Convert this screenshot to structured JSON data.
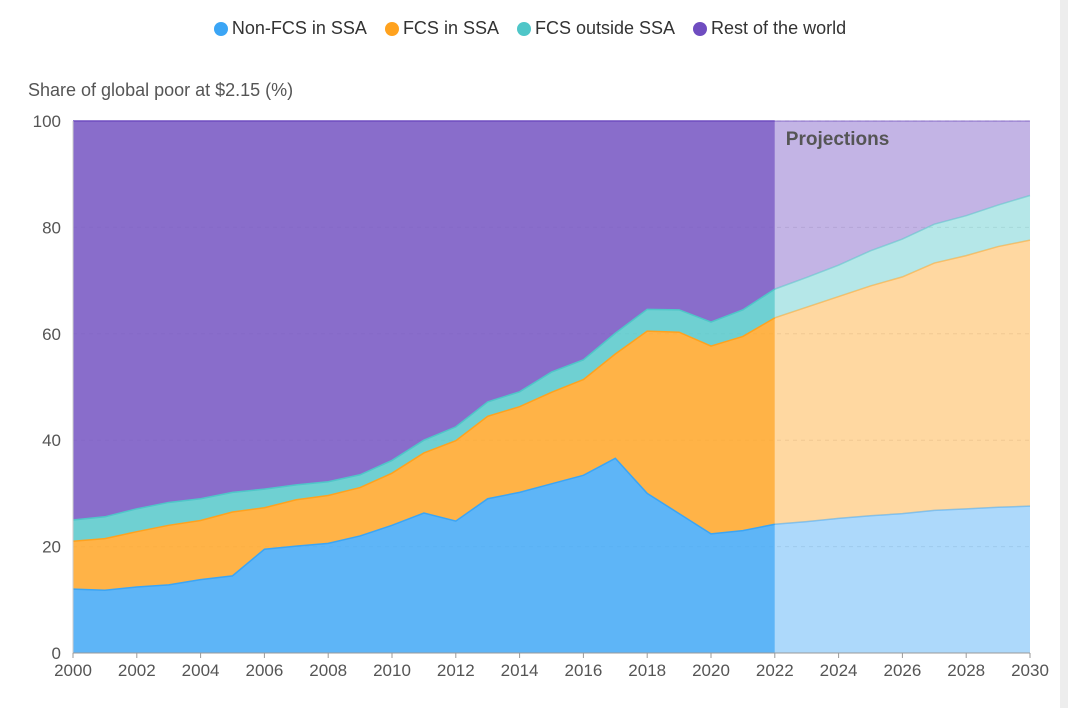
{
  "legend": [
    {
      "name": "Non-FCS in SSA",
      "color": "#3ba5f5"
    },
    {
      "name": "FCS in SSA",
      "color": "#ffa21e"
    },
    {
      "name": "FCS outside SSA",
      "color": "#4fc6c8"
    },
    {
      "name": "Rest of the world",
      "color": "#6f4dc0"
    }
  ],
  "ylabel": "Share of global poor at $2.15 (%)",
  "projection_label": "Projections",
  "chart_data": {
    "type": "area",
    "stacked": true,
    "x": [
      2000,
      2001,
      2002,
      2003,
      2004,
      2005,
      2006,
      2007,
      2008,
      2009,
      2010,
      2011,
      2012,
      2013,
      2014,
      2015,
      2016,
      2017,
      2018,
      2019,
      2020,
      2021,
      2022,
      2023,
      2024,
      2025,
      2026,
      2027,
      2028,
      2029,
      2030
    ],
    "series": [
      {
        "name": "Non-FCS in SSA",
        "color": "#3ba5f5",
        "values": [
          12,
          11.8,
          12.4,
          12.8,
          13.8,
          14.5,
          19.5,
          20.1,
          20.6,
          22,
          24,
          26.3,
          24.8,
          29,
          30.2,
          31.8,
          33.4,
          36.6,
          30,
          26.2,
          22.4,
          23,
          24.2,
          24.7,
          25.3,
          25.8,
          26.2,
          26.8,
          27.1,
          27.4,
          27.6
        ]
      },
      {
        "name": "FCS in SSA",
        "color": "#ffa21e",
        "values": [
          9,
          9.7,
          10.4,
          11.2,
          11.1,
          12,
          7.8,
          8.7,
          9,
          9.1,
          9.8,
          11.3,
          15.1,
          15.5,
          16.1,
          17.2,
          18,
          19.6,
          30.5,
          34.1,
          35.3,
          36.5,
          38.8,
          40.3,
          41.7,
          43.2,
          44.5,
          46.5,
          47.6,
          49,
          50
        ]
      },
      {
        "name": "FCS outside SSA",
        "color": "#4fc6c8",
        "values": [
          4,
          4.1,
          4.3,
          4.3,
          4.1,
          3.7,
          3.5,
          2.8,
          2.6,
          2.4,
          2.4,
          2.4,
          2.6,
          2.7,
          2.8,
          3.8,
          3.7,
          3.9,
          4.1,
          4.2,
          4.5,
          5,
          5.4,
          5.6,
          5.9,
          6.6,
          7.1,
          7.3,
          7.5,
          7.8,
          8.4
        ]
      },
      {
        "name": "Rest of the world",
        "color": "#6f4dc0",
        "values": [
          75,
          74.4,
          72.9,
          71.7,
          71,
          69.8,
          69.2,
          68.4,
          67.8,
          66.5,
          63.8,
          60,
          57.5,
          52.8,
          50.9,
          47.2,
          44.9,
          39.9,
          35.4,
          35.5,
          37.8,
          35.5,
          31.6,
          29.4,
          27.1,
          24.4,
          22.2,
          19.4,
          17.8,
          15.8,
          14
        ]
      }
    ],
    "projection_start": 2022,
    "xlim": [
      2000,
      2030
    ],
    "ylim": [
      0,
      100
    ],
    "yticks": [
      0,
      20,
      40,
      60,
      80,
      100
    ],
    "xticks": [
      2000,
      2002,
      2004,
      2006,
      2008,
      2010,
      2012,
      2014,
      2016,
      2018,
      2020,
      2022,
      2024,
      2026,
      2028,
      2030
    ],
    "legend_position": "top",
    "grid": true
  }
}
